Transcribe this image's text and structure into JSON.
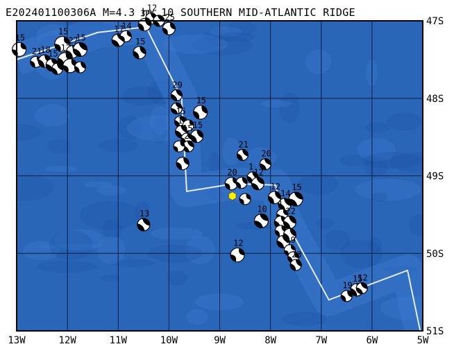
{
  "title": "E202401100306A M=4.3 h= 10 SOUTHERN MID-ATLANTIC RIDGE",
  "colors": {
    "ocean": "#2a66b8",
    "ocean_light": "#3b7ad0",
    "ocean_dark": "#1f56a6",
    "grid": "#0a1e3c",
    "ridge": "#e6ecf4",
    "event_marker": "#ffef00"
  },
  "map": {
    "lon_range": [
      -13,
      -5
    ],
    "lat_range": [
      -51,
      -47
    ],
    "x_ticks": [
      {
        "lon": -13,
        "label": "13W"
      },
      {
        "lon": -12,
        "label": "12W"
      },
      {
        "lon": -11,
        "label": "11W"
      },
      {
        "lon": -10,
        "label": "10W"
      },
      {
        "lon": -9,
        "label": "9W"
      },
      {
        "lon": -8,
        "label": "8W"
      },
      {
        "lon": -7,
        "label": "7W"
      },
      {
        "lon": -6,
        "label": "6W"
      },
      {
        "lon": -5,
        "label": "5W"
      }
    ],
    "y_ticks": [
      {
        "lat": -47,
        "label": "47S"
      },
      {
        "lat": -48,
        "label": "48S"
      },
      {
        "lat": -49,
        "label": "49S"
      },
      {
        "lat": -50,
        "label": "50S"
      },
      {
        "lat": -51,
        "label": "51S"
      }
    ],
    "ridge": [
      [
        -13,
        -47.5
      ],
      [
        -11.4,
        -47.15
      ],
      [
        -10.45,
        -47.08
      ],
      [
        -9.75,
        -48.0
      ],
      [
        -9.65,
        -49.2
      ],
      [
        -8.7,
        -49.1
      ],
      [
        -7.9,
        -49.12
      ],
      [
        -7.75,
        -49.5
      ],
      [
        -7.6,
        -49.7
      ],
      [
        -7.35,
        -50.0
      ],
      [
        -6.85,
        -50.6
      ],
      [
        -5.3,
        -50.22
      ],
      [
        -5.05,
        -51
      ]
    ],
    "event": {
      "lon": -8.75,
      "lat": -49.26
    },
    "mechanisms": [
      {
        "lon": -12.95,
        "lat": -47.37,
        "depth": "15",
        "size": 10
      },
      {
        "lon": -12.62,
        "lat": -47.53,
        "depth": "21",
        "size": 8
      },
      {
        "lon": -12.45,
        "lat": -47.52,
        "depth": "18",
        "size": 9
      },
      {
        "lon": -12.3,
        "lat": -47.57,
        "depth": "15",
        "size": 9
      },
      {
        "lon": -12.1,
        "lat": -47.3,
        "depth": "15",
        "size": 11
      },
      {
        "lon": -12.05,
        "lat": -47.5,
        "depth": "12",
        "size": 10
      },
      {
        "lon": -11.9,
        "lat": -47.4,
        "depth": "27",
        "size": 9
      },
      {
        "lon": -11.75,
        "lat": -47.37,
        "depth": "15",
        "size": 10
      },
      {
        "lon": -11.95,
        "lat": -47.58,
        "depth": "",
        "size": 10
      },
      {
        "lon": -11.75,
        "lat": -47.6,
        "depth": "",
        "size": 8
      },
      {
        "lon": -12.2,
        "lat": -47.62,
        "depth": "",
        "size": 8
      },
      {
        "lon": -11.0,
        "lat": -47.25,
        "depth": "17",
        "size": 9
      },
      {
        "lon": -10.85,
        "lat": -47.2,
        "depth": "14",
        "size": 8
      },
      {
        "lon": -10.48,
        "lat": -47.05,
        "depth": "31",
        "size": 9
      },
      {
        "lon": -10.35,
        "lat": -46.97,
        "depth": "12",
        "size": 8
      },
      {
        "lon": -10.2,
        "lat": -47.0,
        "depth": "",
        "size": 8
      },
      {
        "lon": -10.0,
        "lat": -47.1,
        "depth": "25",
        "size": 9
      },
      {
        "lon": -10.58,
        "lat": -47.41,
        "depth": "15",
        "size": 9
      },
      {
        "lon": -9.85,
        "lat": -47.96,
        "depth": "29",
        "size": 8
      },
      {
        "lon": -9.85,
        "lat": -48.13,
        "depth": "",
        "size": 8
      },
      {
        "lon": -9.38,
        "lat": -48.18,
        "depth": "15",
        "size": 10
      },
      {
        "lon": -9.78,
        "lat": -48.3,
        "depth": "15",
        "size": 8
      },
      {
        "lon": -9.75,
        "lat": -48.43,
        "depth": "12",
        "size": 9
      },
      {
        "lon": -9.62,
        "lat": -48.35,
        "depth": "",
        "size": 8
      },
      {
        "lon": -9.65,
        "lat": -48.52,
        "depth": "15",
        "size": 8
      },
      {
        "lon": -9.45,
        "lat": -48.49,
        "depth": "15",
        "size": 9
      },
      {
        "lon": -9.62,
        "lat": -48.62,
        "depth": "2",
        "size": 8
      },
      {
        "lon": -9.8,
        "lat": -48.62,
        "depth": "",
        "size": 8
      },
      {
        "lon": -9.73,
        "lat": -48.84,
        "depth": "",
        "size": 9
      },
      {
        "lon": -8.55,
        "lat": -48.73,
        "depth": "21",
        "size": 8
      },
      {
        "lon": -8.1,
        "lat": -48.85,
        "depth": "20",
        "size": 8
      },
      {
        "lon": -8.77,
        "lat": -49.1,
        "depth": "20",
        "size": 9
      },
      {
        "lon": -8.57,
        "lat": -49.09,
        "depth": "",
        "size": 8
      },
      {
        "lon": -8.35,
        "lat": -49.02,
        "depth": "1",
        "size": 8
      },
      {
        "lon": -8.25,
        "lat": -49.1,
        "depth": "12",
        "size": 9
      },
      {
        "lon": -8.5,
        "lat": -49.3,
        "depth": "",
        "size": 8
      },
      {
        "lon": -7.92,
        "lat": -49.28,
        "depth": "12",
        "size": 9
      },
      {
        "lon": -7.72,
        "lat": -49.37,
        "depth": "14",
        "size": 9
      },
      {
        "lon": -7.5,
        "lat": -49.3,
        "depth": "15",
        "size": 10
      },
      {
        "lon": -7.77,
        "lat": -49.5,
        "depth": "1",
        "size": 8
      },
      {
        "lon": -7.8,
        "lat": -49.6,
        "depth": "",
        "size": 9
      },
      {
        "lon": -7.62,
        "lat": -49.6,
        "depth": "22",
        "size": 9
      },
      {
        "lon": -8.18,
        "lat": -49.58,
        "depth": "10",
        "size": 10
      },
      {
        "lon": -7.8,
        "lat": -49.71,
        "depth": "",
        "size": 8
      },
      {
        "lon": -7.62,
        "lat": -49.76,
        "depth": "",
        "size": 9
      },
      {
        "lon": -7.75,
        "lat": -49.85,
        "depth": "",
        "size": 9
      },
      {
        "lon": -7.62,
        "lat": -49.96,
        "depth": "19",
        "size": 8
      },
      {
        "lon": -7.55,
        "lat": -50.05,
        "depth": "",
        "size": 8
      },
      {
        "lon": -7.5,
        "lat": -50.15,
        "depth": "23",
        "size": 8
      },
      {
        "lon": -10.5,
        "lat": -49.63,
        "depth": "13",
        "size": 9
      },
      {
        "lon": -8.65,
        "lat": -50.02,
        "depth": "12",
        "size": 10
      },
      {
        "lon": -6.5,
        "lat": -50.55,
        "depth": "19",
        "size": 8
      },
      {
        "lon": -6.3,
        "lat": -50.47,
        "depth": "15",
        "size": 9
      },
      {
        "lon": -6.2,
        "lat": -50.45,
        "depth": "12",
        "size": 8
      }
    ]
  }
}
